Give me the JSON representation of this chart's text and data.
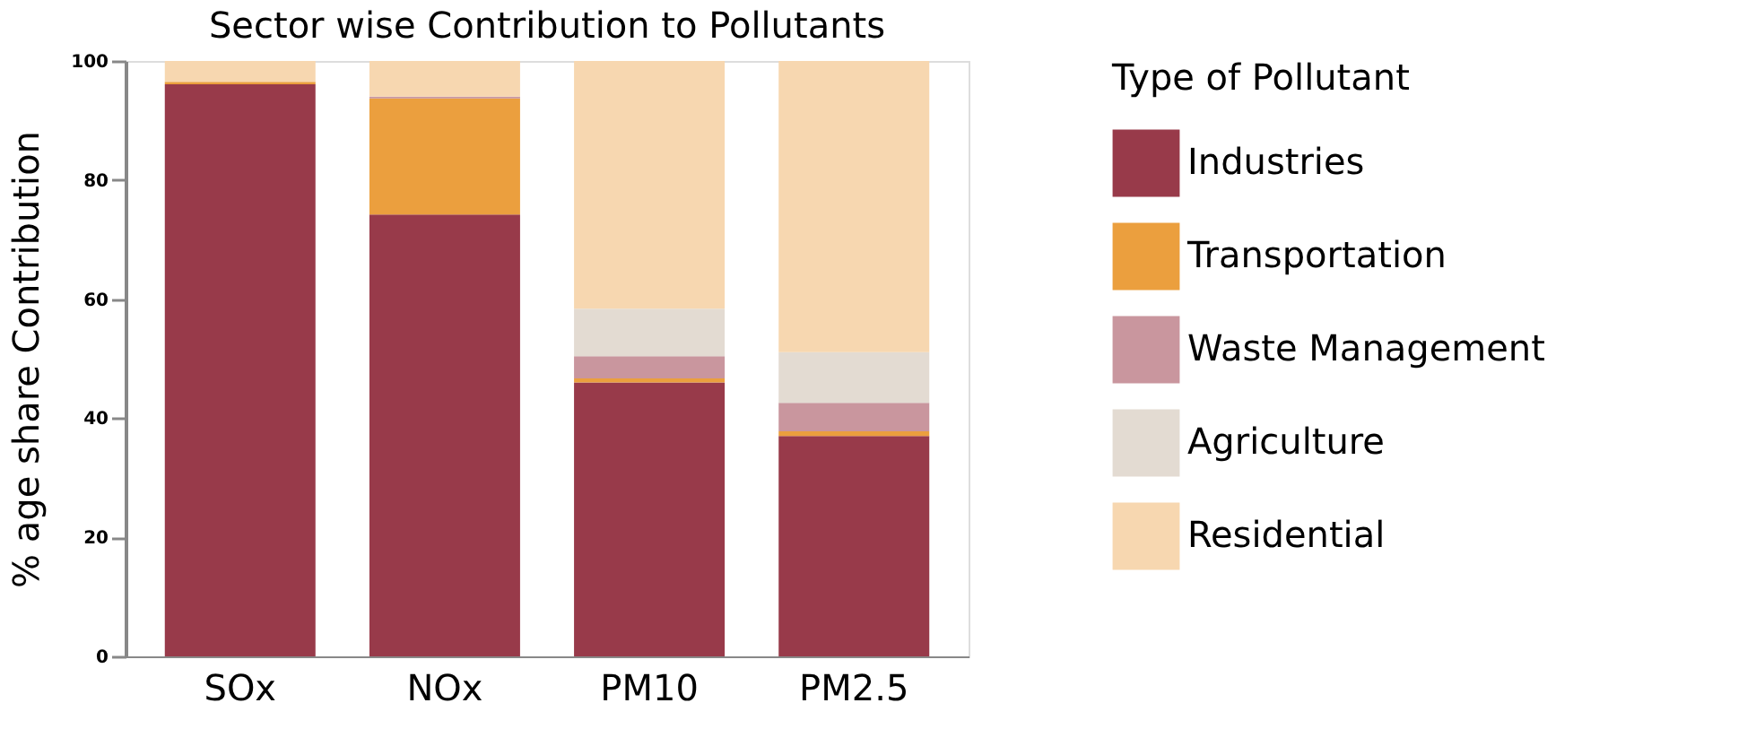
{
  "chart_data": {
    "type": "bar",
    "title": "Sector wise Contribution to Pollutants",
    "ylabel": "% age share Contribution",
    "legend_title": "Type of Pollutant",
    "categories": [
      "SOx",
      "NOx",
      "PM10",
      "PM2.5"
    ],
    "stacked": true,
    "series": [
      {
        "name": "Industries",
        "color": "#983a4a",
        "values": [
          96.1,
          74.2,
          46.0,
          37.0
        ]
      },
      {
        "name": "Transportation",
        "color": "#eb9f3e",
        "values": [
          0.4,
          19.5,
          0.7,
          0.8
        ]
      },
      {
        "name": "Waste Management",
        "color": "#c9969e",
        "values": [
          0,
          0.3,
          3.7,
          4.8
        ]
      },
      {
        "name": "Agriculture",
        "color": "#e3dbd2",
        "values": [
          0,
          0,
          8.0,
          8.5
        ]
      },
      {
        "name": "Residential",
        "color": "#f7d7b0",
        "values": [
          3.5,
          6.0,
          41.6,
          48.9
        ]
      }
    ],
    "ylim": [
      0,
      100
    ],
    "yticks": [
      0,
      20,
      40,
      60,
      80,
      100
    ],
    "grid": false,
    "legend": "right"
  }
}
